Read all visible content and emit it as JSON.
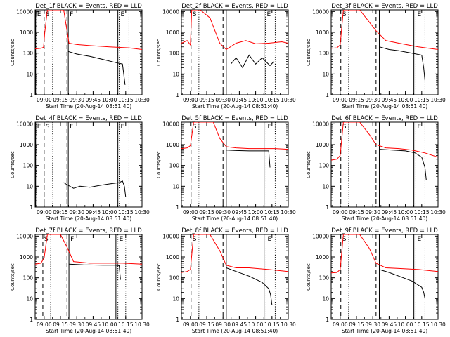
{
  "figure": {
    "xlabel": "Start Time (20-Aug-14 08:51:40)",
    "ylabel": "Counts/sec",
    "xticks": [
      "09:00",
      "09:15",
      "09:30",
      "09:45",
      "10:00",
      "10:15",
      "10:30"
    ],
    "yticks": [
      "1",
      "10",
      "100",
      "1000",
      "10000"
    ],
    "colors": {
      "events": "#000000",
      "lld": "#ff0000"
    }
  },
  "chart_data": [
    {
      "type": "line",
      "title": "Det_1f BLACK = Events, RED = LLD",
      "xlim": [
        8.862,
        10.5
      ],
      "ylim": [
        1,
        12000
      ],
      "yscale": "log",
      "markers": [
        {
          "label": "E",
          "x": 8.87,
          "style": "solid"
        },
        {
          "label": "S",
          "x": 9.0,
          "style": "dashed"
        },
        {
          "label": "",
          "x": 9.13,
          "style": "dotted"
        },
        {
          "label": "",
          "x": 9.35,
          "style": "dashed"
        },
        {
          "label": "F",
          "x": 9.37,
          "style": "solid"
        },
        {
          "label": "",
          "x": 10.13,
          "style": "solid"
        },
        {
          "label": "E",
          "x": 10.15,
          "style": "dotted"
        },
        {
          "label": "",
          "x": 10.3,
          "style": "dotted"
        }
      ],
      "series": [
        {
          "name": "LLD",
          "x": [
            8.862,
            8.95,
            8.99,
            9.01,
            9.05,
            9.1,
            9.3,
            9.38,
            9.5,
            9.7,
            10.0,
            10.3,
            10.5
          ],
          "values": [
            160,
            170,
            190,
            1000,
            12000,
            12000,
            12000,
            300,
            260,
            230,
            200,
            180,
            150
          ]
        },
        {
          "name": "Events",
          "x": [
            9.37,
            9.5,
            9.7,
            9.9,
            10.1,
            10.2,
            10.22,
            10.24
          ],
          "values": [
            120,
            90,
            70,
            50,
            35,
            30,
            10,
            3
          ]
        }
      ]
    },
    {
      "type": "line",
      "title": "Det_2f BLACK = Events, RED = LLD",
      "xlim": [
        8.862,
        10.5
      ],
      "ylim": [
        1,
        12000
      ],
      "yscale": "log",
      "markers": [
        {
          "label": "S",
          "x": 9.01,
          "style": "dashed"
        },
        {
          "label": "",
          "x": 9.13,
          "style": "dotted"
        },
        {
          "label": "",
          "x": 9.5,
          "style": "dashed"
        },
        {
          "label": "",
          "x": 9.55,
          "style": "solid"
        },
        {
          "label": "",
          "x": 10.13,
          "style": "solid"
        },
        {
          "label": "E",
          "x": 10.15,
          "style": "dotted"
        },
        {
          "label": "",
          "x": 10.3,
          "style": "dotted"
        }
      ],
      "series": [
        {
          "name": "LLD",
          "x": [
            8.862,
            8.95,
            9.0,
            9.02,
            9.08,
            9.15,
            9.3,
            9.45,
            9.55,
            9.7,
            9.85,
            10.0,
            10.2,
            10.4,
            10.5
          ],
          "values": [
            300,
            400,
            250,
            12000,
            12000,
            12000,
            5000,
            300,
            150,
            300,
            400,
            280,
            300,
            350,
            300
          ]
        },
        {
          "name": "Events",
          "x": [
            9.62,
            9.7,
            9.8,
            9.9,
            10.0,
            10.1,
            10.22,
            10.28
          ],
          "values": [
            30,
            60,
            20,
            80,
            30,
            60,
            25,
            40
          ]
        }
      ]
    },
    {
      "type": "line",
      "title": "Det_3f BLACK = Events, RED = LLD",
      "xlim": [
        8.862,
        10.5
      ],
      "ylim": [
        1,
        12000
      ],
      "yscale": "log",
      "markers": [
        {
          "label": "S",
          "x": 9.01,
          "style": "dashed"
        },
        {
          "label": "",
          "x": 9.13,
          "style": "dotted"
        },
        {
          "label": "",
          "x": 9.55,
          "style": "dashed"
        },
        {
          "label": "",
          "x": 9.6,
          "style": "solid"
        },
        {
          "label": "",
          "x": 10.13,
          "style": "solid"
        },
        {
          "label": "E",
          "x": 10.16,
          "style": "dotted"
        },
        {
          "label": "",
          "x": 10.3,
          "style": "dotted"
        }
      ],
      "series": [
        {
          "name": "LLD",
          "x": [
            8.862,
            8.95,
            9.0,
            9.05,
            9.15,
            9.3,
            9.45,
            9.55,
            9.7,
            9.9,
            10.2,
            10.5
          ],
          "values": [
            170,
            180,
            250,
            12000,
            12000,
            12000,
            3000,
            1200,
            400,
            300,
            200,
            150
          ]
        },
        {
          "name": "Events",
          "x": [
            9.6,
            9.75,
            9.9,
            10.1,
            10.25,
            10.28,
            10.3
          ],
          "values": [
            200,
            150,
            130,
            100,
            80,
            20,
            5
          ]
        }
      ]
    },
    {
      "type": "line",
      "title": "Det_4f BLACK = Events, RED = LLD",
      "xlim": [
        8.862,
        10.5
      ],
      "ylim": [
        1,
        12000
      ],
      "yscale": "log",
      "markers": [
        {
          "label": "E",
          "x": 8.87,
          "style": "solid"
        },
        {
          "label": "S",
          "x": 9.0,
          "style": "dashed"
        },
        {
          "label": "",
          "x": 9.13,
          "style": "dotted"
        },
        {
          "label": "",
          "x": 9.35,
          "style": "dashed"
        },
        {
          "label": "F",
          "x": 9.37,
          "style": "solid"
        },
        {
          "label": "",
          "x": 10.13,
          "style": "solid"
        },
        {
          "label": "E",
          "x": 10.15,
          "style": "dotted"
        },
        {
          "label": "",
          "x": 10.3,
          "style": "dotted"
        }
      ],
      "series": [
        {
          "name": "Events",
          "x": [
            9.3,
            9.35,
            9.45,
            9.55,
            9.7,
            9.85,
            10.0,
            10.15,
            10.2,
            10.23,
            10.25
          ],
          "values": [
            15,
            12,
            8,
            10,
            9,
            11,
            13,
            15,
            18,
            10,
            3
          ]
        }
      ]
    },
    {
      "type": "line",
      "title": "Det_5f BLACK = Events, RED = LLD",
      "xlim": [
        8.862,
        10.5
      ],
      "ylim": [
        1,
        12000
      ],
      "yscale": "log",
      "markers": [
        {
          "label": "S",
          "x": 9.01,
          "style": "dashed"
        },
        {
          "label": "",
          "x": 9.13,
          "style": "dotted"
        },
        {
          "label": "",
          "x": 9.5,
          "style": "dashed"
        },
        {
          "label": "",
          "x": 9.55,
          "style": "solid"
        },
        {
          "label": "",
          "x": 10.13,
          "style": "solid"
        },
        {
          "label": "E",
          "x": 10.16,
          "style": "dotted"
        },
        {
          "label": "",
          "x": 10.3,
          "style": "dotted"
        }
      ],
      "series": [
        {
          "name": "LLD",
          "x": [
            8.862,
            8.95,
            9.0,
            9.05,
            9.15,
            9.35,
            9.45,
            9.55,
            9.7,
            9.9,
            10.1,
            10.3,
            10.5
          ],
          "values": [
            650,
            700,
            900,
            12000,
            12000,
            12000,
            2000,
            800,
            700,
            650,
            650,
            650,
            600
          ]
        },
        {
          "name": "Events",
          "x": [
            9.55,
            9.7,
            9.9,
            10.1,
            10.2,
            10.22
          ],
          "values": [
            550,
            520,
            500,
            500,
            500,
            80
          ]
        }
      ]
    },
    {
      "type": "line",
      "title": "Det_6f BLACK = Events, RED = LLD",
      "xlim": [
        8.862,
        10.5
      ],
      "ylim": [
        1,
        12000
      ],
      "yscale": "log",
      "markers": [
        {
          "label": "S",
          "x": 9.01,
          "style": "dashed"
        },
        {
          "label": "",
          "x": 9.13,
          "style": "dotted"
        },
        {
          "label": "",
          "x": 9.55,
          "style": "dashed"
        },
        {
          "label": "",
          "x": 9.6,
          "style": "solid"
        },
        {
          "label": "",
          "x": 10.13,
          "style": "solid"
        },
        {
          "label": "E",
          "x": 10.16,
          "style": "dotted"
        },
        {
          "label": "",
          "x": 10.3,
          "style": "dotted"
        }
      ],
      "series": [
        {
          "name": "LLD",
          "x": [
            8.862,
            8.95,
            9.0,
            9.05,
            9.15,
            9.3,
            9.45,
            9.55,
            9.7,
            9.9,
            10.1,
            10.3,
            10.5
          ],
          "values": [
            180,
            200,
            300,
            12000,
            12000,
            12000,
            3000,
            1000,
            700,
            650,
            550,
            400,
            250
          ]
        },
        {
          "name": "Events",
          "x": [
            9.6,
            9.8,
            10.0,
            10.15,
            10.25,
            10.3,
            10.32
          ],
          "values": [
            600,
            550,
            500,
            400,
            250,
            80,
            20
          ]
        }
      ]
    },
    {
      "type": "line",
      "title": "Det_7f BLACK = Events, RED = LLD",
      "xlim": [
        8.862,
        10.5
      ],
      "ylim": [
        1,
        12000
      ],
      "yscale": "log",
      "markers": [
        {
          "label": "S",
          "x": 8.98,
          "style": "dashed"
        },
        {
          "label": "",
          "x": 9.1,
          "style": "dotted"
        },
        {
          "label": "",
          "x": 9.35,
          "style": "dashed"
        },
        {
          "label": "F",
          "x": 9.38,
          "style": "solid"
        },
        {
          "label": "",
          "x": 10.1,
          "style": "solid"
        },
        {
          "label": "E",
          "x": 10.13,
          "style": "dotted"
        },
        {
          "label": "",
          "x": 10.25,
          "style": "dotted"
        }
      ],
      "series": [
        {
          "name": "LLD",
          "x": [
            8.862,
            8.95,
            9.0,
            9.05,
            9.15,
            9.25,
            9.35,
            9.45,
            9.7,
            10.0,
            10.2,
            10.5
          ],
          "values": [
            450,
            500,
            900,
            12000,
            12000,
            12000,
            3000,
            600,
            500,
            500,
            500,
            450
          ]
        },
        {
          "name": "Events",
          "x": [
            9.38,
            9.6,
            9.9,
            10.1,
            10.15,
            10.17
          ],
          "values": [
            450,
            420,
            400,
            400,
            380,
            80
          ]
        }
      ]
    },
    {
      "type": "line",
      "title": "Det_8f BLACK = Events, RED = LLD",
      "xlim": [
        8.862,
        10.5
      ],
      "ylim": [
        1,
        12000
      ],
      "yscale": "log",
      "markers": [
        {
          "label": "S",
          "x": 9.01,
          "style": "dashed"
        },
        {
          "label": "",
          "x": 9.13,
          "style": "dotted"
        },
        {
          "label": "",
          "x": 9.5,
          "style": "dashed"
        },
        {
          "label": "",
          "x": 9.55,
          "style": "solid"
        },
        {
          "label": "",
          "x": 10.13,
          "style": "solid"
        },
        {
          "label": "E",
          "x": 10.16,
          "style": "dotted"
        },
        {
          "label": "",
          "x": 10.3,
          "style": "dotted"
        }
      ],
      "series": [
        {
          "name": "LLD",
          "x": [
            8.862,
            8.95,
            9.0,
            9.05,
            9.15,
            9.3,
            9.45,
            9.55,
            9.7,
            9.9,
            10.2,
            10.5
          ],
          "values": [
            180,
            200,
            250,
            12000,
            12000,
            12000,
            2000,
            400,
            300,
            300,
            250,
            200
          ]
        },
        {
          "name": "Events",
          "x": [
            9.55,
            9.7,
            9.9,
            10.1,
            10.2,
            10.23,
            10.25
          ],
          "values": [
            300,
            200,
            120,
            60,
            30,
            15,
            5
          ]
        }
      ]
    },
    {
      "type": "line",
      "title": "Det_9f BLACK = Events, RED = LLD",
      "xlim": [
        8.862,
        10.5
      ],
      "ylim": [
        1,
        12000
      ],
      "yscale": "log",
      "markers": [
        {
          "label": "S",
          "x": 9.01,
          "style": "dashed"
        },
        {
          "label": "",
          "x": 9.13,
          "style": "dotted"
        },
        {
          "label": "",
          "x": 9.55,
          "style": "dashed"
        },
        {
          "label": "",
          "x": 9.6,
          "style": "solid"
        },
        {
          "label": "",
          "x": 10.13,
          "style": "solid"
        },
        {
          "label": "E",
          "x": 10.16,
          "style": "dotted"
        },
        {
          "label": "",
          "x": 10.3,
          "style": "dotted"
        }
      ],
      "series": [
        {
          "name": "LLD",
          "x": [
            8.862,
            8.95,
            9.0,
            9.05,
            9.15,
            9.3,
            9.45,
            9.55,
            9.7,
            9.9,
            10.2,
            10.5
          ],
          "values": [
            170,
            180,
            250,
            12000,
            12000,
            12000,
            2500,
            500,
            300,
            280,
            250,
            200
          ]
        },
        {
          "name": "Events",
          "x": [
            9.6,
            9.75,
            9.9,
            10.1,
            10.25,
            10.28,
            10.3
          ],
          "values": [
            250,
            180,
            120,
            70,
            35,
            20,
            10
          ]
        }
      ]
    }
  ]
}
